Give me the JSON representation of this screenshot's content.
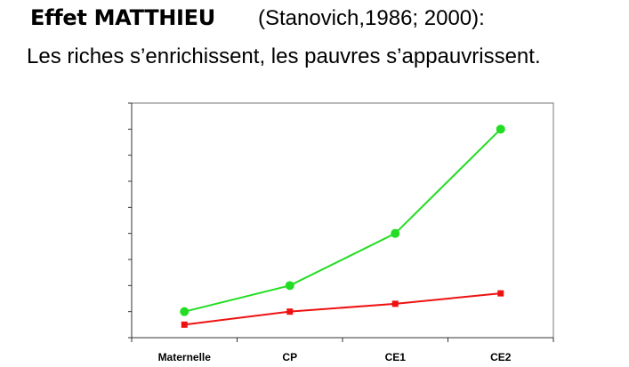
{
  "slide": {
    "title": "Effet MATTHIEU",
    "citation": "(Stanovich,1986; 2000):",
    "subtitle": "Les riches s’enrichissent, les pauvres s’appauvrissent."
  },
  "chart_data": {
    "type": "line",
    "title": "",
    "xlabel": "",
    "ylabel": "",
    "categories": [
      "Maternelle",
      "CP",
      "CE1",
      "CE2"
    ],
    "ylim": [
      0,
      9
    ],
    "y_ticks": [
      0,
      1,
      2,
      3,
      4,
      5,
      6,
      7,
      8,
      9
    ],
    "y_tick_labels_shown": false,
    "grid": false,
    "legend": "none",
    "series": [
      {
        "color": "#22dd22",
        "marker": "circle",
        "values": [
          1.0,
          2.0,
          4.0,
          8.0
        ]
      },
      {
        "color": "#ee1111",
        "marker": "square",
        "values": [
          0.5,
          1.0,
          1.3,
          1.7
        ]
      }
    ]
  }
}
